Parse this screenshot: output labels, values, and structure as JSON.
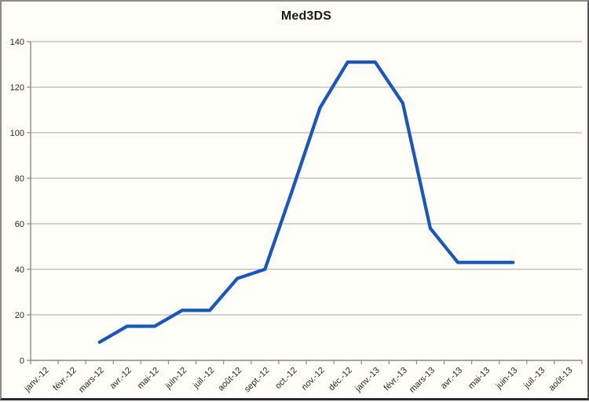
{
  "chart_data": {
    "type": "line",
    "title": "Med3DS",
    "categories": [
      "janv.-12",
      "févr.-12",
      "mars-12",
      "avr.-12",
      "mai-12",
      "juin-12",
      "juil.-12",
      "août-12",
      "sept.-12",
      "oct.-12",
      "nov.-12",
      "déc.-12",
      "janv.-13",
      "févr.-13",
      "mars-13",
      "avr.-13",
      "mai-13",
      "juin-13",
      "juil.-13",
      "août-13"
    ],
    "series": [
      {
        "name": "Med3DS",
        "values": [
          null,
          null,
          8,
          15,
          15,
          22,
          22,
          36,
          40,
          75,
          111,
          131,
          131,
          113,
          58,
          43,
          43,
          43,
          null,
          null
        ]
      }
    ],
    "xlabel": "",
    "ylabel": "",
    "ylim": [
      0,
      140
    ],
    "ytick_step": 20,
    "y_tick_labels": [
      "0",
      "20",
      "40",
      "60",
      "80",
      "100",
      "120",
      "140"
    ],
    "grid": "horizontal",
    "legend_position": "none",
    "x_label_rotation_deg": 45,
    "colors": {
      "line": "#1A57B8",
      "gridline": "#A6A6A6",
      "axis": "#8A8A8A",
      "background": "#FFFEF8",
      "label": "#262626",
      "title": "#1A1A1A"
    }
  }
}
